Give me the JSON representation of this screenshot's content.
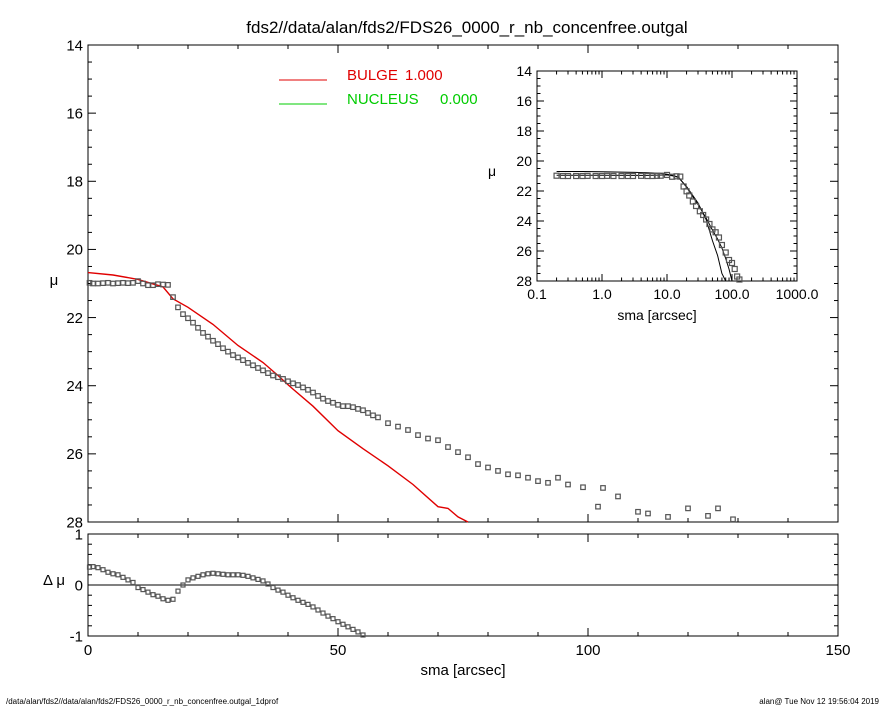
{
  "footer": {
    "left": "/data/alan/fds2//data/alan/fds2/FDS26_0000_r_nb_concenfree.outgal_1dprof",
    "right": "alan@  Tue Nov 12 19:56:04 2019"
  },
  "colors": {
    "bulge": "#e00000",
    "nucleus": "#00cc00",
    "data": "#555555",
    "axes": "#000000"
  },
  "chart_data": [
    {
      "id": "main",
      "type": "scatter",
      "title": "fds2//data/alan/fds2/FDS26_0000_r_nb_concenfree.outgal",
      "xlabel": "",
      "ylabel": "μ",
      "xlim": [
        0,
        150
      ],
      "ylim": [
        28,
        14
      ],
      "x_ticks": [
        0,
        50,
        100,
        150
      ],
      "y_ticks": [
        14,
        16,
        18,
        20,
        22,
        24,
        26,
        28
      ],
      "legend": {
        "placement": "top-center",
        "entries": [
          {
            "name": "BULGE",
            "value": "1.000",
            "color": "#e00000"
          },
          {
            "name": "NUCLEUS",
            "value": "0.000",
            "color": "#00cc00"
          }
        ]
      },
      "series": [
        {
          "name": "observed",
          "kind": "points",
          "x": [
            0.3,
            1,
            2,
            3,
            4,
            5,
            6,
            7,
            8,
            9,
            10,
            11,
            12,
            13,
            14,
            15,
            16,
            17,
            18,
            19,
            20,
            21,
            22,
            23,
            24,
            25,
            26,
            27,
            28,
            29,
            30,
            31,
            32,
            33,
            34,
            35,
            36,
            37,
            38,
            39,
            40,
            41,
            42,
            43,
            44,
            45,
            46,
            47,
            48,
            49,
            50,
            51,
            52,
            53,
            54,
            55,
            56,
            57,
            58,
            60,
            62,
            64,
            66,
            68,
            70,
            72,
            74,
            76,
            78,
            80,
            82,
            84,
            86,
            88,
            90,
            92,
            94,
            96,
            99,
            102,
            103,
            106,
            110,
            112,
            116,
            120,
            124,
            126,
            129
          ],
          "y": [
            20.98,
            21.0,
            21.0,
            20.99,
            20.98,
            21.0,
            20.99,
            20.98,
            20.99,
            20.98,
            20.93,
            21.0,
            21.05,
            21.05,
            21.02,
            21.03,
            21.04,
            21.4,
            21.7,
            21.9,
            22.02,
            22.15,
            22.3,
            22.45,
            22.56,
            22.68,
            22.78,
            22.9,
            23.0,
            23.1,
            23.17,
            23.25,
            23.33,
            23.4,
            23.48,
            23.55,
            23.63,
            23.7,
            23.75,
            23.8,
            23.87,
            23.93,
            23.98,
            24.05,
            24.12,
            24.2,
            24.3,
            24.38,
            24.45,
            24.5,
            24.56,
            24.6,
            24.6,
            24.63,
            24.68,
            24.72,
            24.8,
            24.87,
            24.93,
            25.1,
            25.2,
            25.3,
            25.45,
            25.55,
            25.6,
            25.8,
            25.95,
            26.1,
            26.3,
            26.4,
            26.5,
            26.6,
            26.63,
            26.7,
            26.8,
            26.85,
            26.7,
            26.9,
            26.98,
            27.55,
            27.0,
            27.25,
            27.7,
            27.75,
            27.85,
            27.6,
            27.82,
            27.6,
            27.92
          ]
        },
        {
          "name": "BULGE",
          "kind": "line",
          "x": [
            0,
            5,
            10,
            15,
            17,
            20,
            25,
            30,
            35,
            38,
            40,
            41,
            45,
            50,
            55,
            60,
            65,
            70,
            72,
            74,
            76
          ],
          "y": [
            20.68,
            20.75,
            20.88,
            21.1,
            21.45,
            21.7,
            22.2,
            22.82,
            23.32,
            23.7,
            23.97,
            24.1,
            24.6,
            25.32,
            25.85,
            26.35,
            26.9,
            27.55,
            27.6,
            27.85,
            28.0
          ]
        }
      ]
    },
    {
      "id": "residual",
      "type": "scatter",
      "title": "",
      "xlabel": "sma [arcsec]",
      "ylabel": "Δ μ",
      "xlim": [
        0,
        150
      ],
      "ylim": [
        -1,
        1
      ],
      "x_ticks": [
        0,
        50,
        100,
        150
      ],
      "y_ticks": [
        -1,
        0,
        1
      ],
      "series": [
        {
          "name": "residual",
          "kind": "points",
          "x": [
            0.3,
            1,
            2,
            3,
            4,
            5,
            6,
            7,
            8,
            9,
            10,
            11,
            12,
            13,
            14,
            15,
            16,
            17,
            18,
            19,
            20,
            21,
            22,
            23,
            24,
            25,
            26,
            27,
            28,
            29,
            30,
            31,
            32,
            33,
            34,
            35,
            36,
            37,
            38,
            39,
            40,
            41,
            42,
            43,
            44,
            45,
            46,
            47,
            48,
            49,
            50,
            51,
            52,
            53,
            54,
            55
          ],
          "y": [
            0.35,
            0.36,
            0.34,
            0.3,
            0.25,
            0.22,
            0.2,
            0.15,
            0.1,
            0.05,
            -0.05,
            -0.09,
            -0.14,
            -0.19,
            -0.22,
            -0.27,
            -0.3,
            -0.28,
            -0.12,
            0.0,
            0.1,
            0.14,
            0.17,
            0.2,
            0.22,
            0.23,
            0.22,
            0.21,
            0.2,
            0.2,
            0.2,
            0.19,
            0.17,
            0.14,
            0.11,
            0.08,
            0.02,
            -0.05,
            -0.1,
            -0.14,
            -0.2,
            -0.25,
            -0.3,
            -0.34,
            -0.38,
            -0.43,
            -0.49,
            -0.55,
            -0.61,
            -0.66,
            -0.72,
            -0.77,
            -0.82,
            -0.87,
            -0.92,
            -0.98
          ]
        },
        {
          "name": "zero",
          "kind": "hline",
          "y": 0
        }
      ]
    },
    {
      "id": "inset",
      "type": "scatter",
      "title": "",
      "xlabel": "sma [arcsec]",
      "ylabel": "μ",
      "xscale": "log",
      "xlim": [
        0.1,
        1000
      ],
      "ylim": [
        28,
        14
      ],
      "x_ticks": [
        0.1,
        1,
        10,
        100,
        1000
      ],
      "x_tick_labels": [
        "0.1",
        "1.0",
        "10.0",
        "100.0",
        "1000.0"
      ],
      "y_ticks": [
        14,
        16,
        18,
        20,
        22,
        24,
        26,
        28
      ],
      "series": [
        {
          "name": "observed",
          "kind": "points",
          "x": [
            0.2,
            0.25,
            0.3,
            0.4,
            0.5,
            0.6,
            0.8,
            1,
            1.2,
            1.5,
            2,
            2.5,
            3,
            4,
            5,
            6,
            7,
            8,
            10,
            12,
            14,
            16,
            18,
            20,
            22,
            25,
            28,
            32,
            36,
            40,
            45,
            50,
            56,
            63,
            70,
            80,
            90,
            100,
            110,
            120,
            130
          ],
          "y": [
            20.98,
            21.0,
            21.0,
            21.0,
            21.0,
            20.99,
            21.0,
            21.0,
            20.99,
            21.0,
            21.0,
            21.0,
            21.0,
            20.99,
            21.0,
            21.0,
            20.99,
            20.98,
            20.93,
            21.05,
            21.02,
            21.04,
            21.7,
            22.02,
            22.3,
            22.7,
            23.0,
            23.35,
            23.6,
            23.9,
            24.2,
            24.56,
            24.75,
            25.1,
            25.6,
            26.1,
            26.6,
            26.8,
            27.2,
            27.7,
            27.9
          ]
        },
        {
          "name": "BULGE",
          "kind": "line",
          "x": [
            0.2,
            0.5,
            1,
            2,
            5,
            8,
            10,
            12,
            15,
            20,
            30,
            40,
            50,
            60,
            70,
            80
          ],
          "y": [
            20.7,
            20.7,
            20.72,
            20.74,
            20.78,
            20.83,
            20.88,
            20.95,
            21.1,
            21.7,
            22.8,
            23.9,
            25.3,
            26.3,
            27.5,
            28.0
          ]
        },
        {
          "name": "NUCLEUS",
          "kind": "line",
          "x": [
            0.2,
            1,
            5,
            10,
            12,
            15,
            20,
            30,
            40,
            50,
            60,
            70,
            80,
            90,
            100
          ],
          "y": [
            20.95,
            20.95,
            20.96,
            20.93,
            20.98,
            21.05,
            21.75,
            22.9,
            23.8,
            24.6,
            25.2,
            25.8,
            26.5,
            27.2,
            28.0
          ]
        }
      ]
    }
  ]
}
